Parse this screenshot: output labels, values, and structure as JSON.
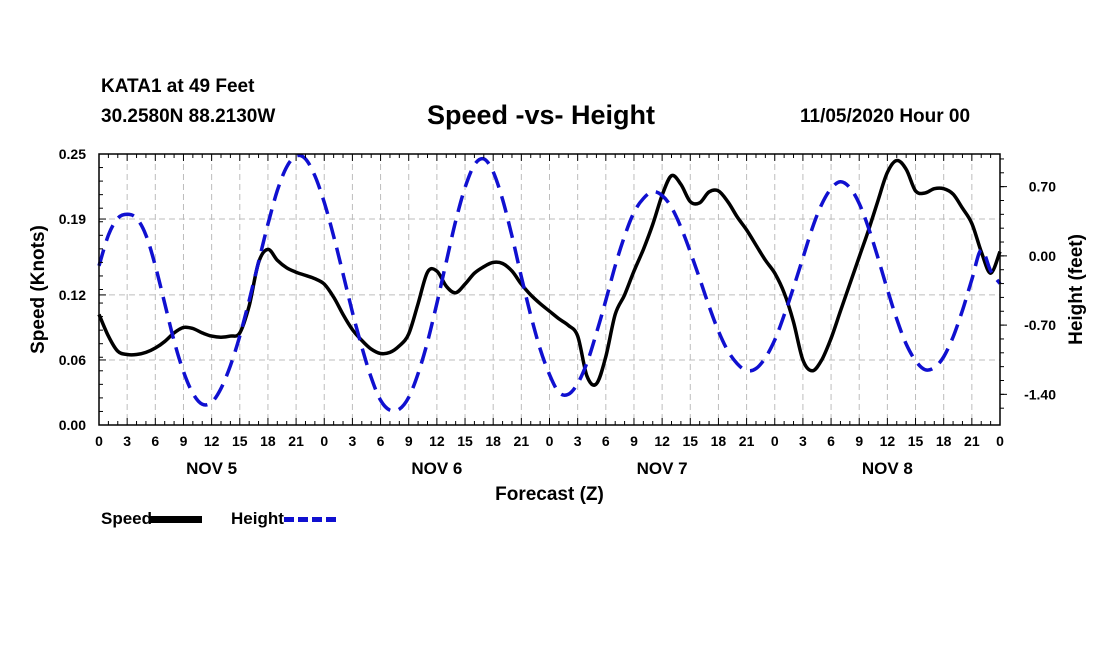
{
  "header": {
    "station": "KATA1 at 49 Feet",
    "coords": "30.2580N 88.2130W",
    "title": "Speed -vs- Height",
    "timestamp": "11/05/2020 Hour 00"
  },
  "legend": {
    "speed": "Speed",
    "height": "Height"
  },
  "colors": {
    "speed": "#000000",
    "height": "#1010d0",
    "grid": "#bdbdbd"
  },
  "chart_data": {
    "type": "line",
    "title": "Speed -vs- Height",
    "xlabel": "Forecast (Z)",
    "ylabel": "Speed (Knots)",
    "y2label": "Height (feet)",
    "xlim": [
      0,
      96
    ],
    "ylim": [
      0,
      0.25
    ],
    "y2lim": [
      -1.71,
      1.03
    ],
    "x_ticks": [
      "0",
      "3",
      "6",
      "9",
      "12",
      "15",
      "18",
      "21",
      "0",
      "3",
      "6",
      "9",
      "12",
      "15",
      "18",
      "21",
      "0",
      "3",
      "6",
      "9",
      "12",
      "15",
      "18",
      "21",
      "0",
      "3",
      "6",
      "9",
      "12",
      "15",
      "18",
      "21",
      "0"
    ],
    "y_ticks": [
      0.0,
      0.06,
      0.12,
      0.19,
      0.25
    ],
    "y_tick_labels": [
      "0.00",
      "0.06",
      "0.12",
      "0.19",
      "0.25"
    ],
    "y2_ticks": [
      -1.4,
      -0.7,
      0.0,
      0.7
    ],
    "y2_tick_labels": [
      "-1.40",
      "-0.70",
      "0.00",
      "0.70"
    ],
    "day_labels": [
      {
        "label": "NOV 5",
        "at": 12
      },
      {
        "label": "NOV 6",
        "at": 36
      },
      {
        "label": "NOV 7",
        "at": 60
      },
      {
        "label": "NOV 8",
        "at": 84
      }
    ],
    "grid": true,
    "series": [
      {
        "name": "Speed",
        "axis": "left",
        "style": "solid",
        "x": [
          0,
          1,
          2,
          3,
          4,
          5,
          6,
          7,
          8,
          9,
          10,
          11,
          12,
          13,
          14,
          15,
          16,
          17,
          18,
          19,
          20,
          21,
          22,
          23,
          24,
          25,
          26,
          27,
          28,
          29,
          30,
          31,
          32,
          33,
          34,
          35,
          36,
          37,
          38,
          39,
          40,
          41,
          42,
          43,
          44,
          45,
          46,
          47,
          48,
          49,
          50,
          51,
          52,
          53,
          54,
          55,
          56,
          57,
          58,
          59,
          60,
          61,
          62,
          63,
          64,
          65,
          66,
          67,
          68,
          69,
          70,
          71,
          72,
          73,
          74,
          75,
          76,
          77,
          78,
          79,
          80,
          81,
          82,
          83,
          84,
          85,
          86,
          87,
          88,
          89,
          90,
          91,
          92,
          93,
          94,
          95,
          96
        ],
        "values": [
          0.102,
          0.082,
          0.068,
          0.065,
          0.065,
          0.067,
          0.071,
          0.077,
          0.085,
          0.09,
          0.089,
          0.085,
          0.082,
          0.081,
          0.082,
          0.085,
          0.11,
          0.15,
          0.162,
          0.152,
          0.145,
          0.141,
          0.138,
          0.135,
          0.13,
          0.118,
          0.102,
          0.088,
          0.078,
          0.07,
          0.066,
          0.067,
          0.073,
          0.084,
          0.112,
          0.141,
          0.142,
          0.128,
          0.122,
          0.13,
          0.14,
          0.146,
          0.15,
          0.149,
          0.142,
          0.13,
          0.12,
          0.112,
          0.105,
          0.098,
          0.092,
          0.082,
          0.045,
          0.038,
          0.063,
          0.102,
          0.12,
          0.142,
          0.162,
          0.185,
          0.212,
          0.23,
          0.222,
          0.206,
          0.205,
          0.215,
          0.216,
          0.206,
          0.192,
          0.18,
          0.166,
          0.152,
          0.14,
          0.122,
          0.095,
          0.06,
          0.05,
          0.06,
          0.08,
          0.105,
          0.13,
          0.155,
          0.18,
          0.207,
          0.233,
          0.244,
          0.236,
          0.216,
          0.214,
          0.218,
          0.218,
          0.213,
          0.2,
          0.186,
          0.16,
          0.14,
          0.16
        ]
      },
      {
        "name": "Height",
        "axis": "right",
        "style": "dashed",
        "x": [
          0,
          1,
          2,
          3,
          4,
          5,
          6,
          7,
          8,
          9,
          10,
          11,
          12,
          13,
          14,
          15,
          16,
          17,
          18,
          19,
          20,
          21,
          22,
          23,
          24,
          25,
          26,
          27,
          28,
          29,
          30,
          31,
          32,
          33,
          34,
          35,
          36,
          37,
          38,
          39,
          40,
          41,
          42,
          43,
          44,
          45,
          46,
          47,
          48,
          49,
          50,
          51,
          52,
          53,
          54,
          55,
          56,
          57,
          58,
          59,
          60,
          61,
          62,
          63,
          64,
          65,
          66,
          67,
          68,
          69,
          70,
          71,
          72,
          73,
          74,
          75,
          76,
          77,
          78,
          79,
          80,
          81,
          82,
          83,
          84,
          85,
          86,
          87,
          88,
          89,
          90,
          91,
          92,
          93,
          94,
          95,
          96
        ],
        "values": [
          -0.1,
          0.21,
          0.38,
          0.42,
          0.38,
          0.21,
          -0.1,
          -0.48,
          -0.86,
          -1.17,
          -1.39,
          -1.5,
          -1.48,
          -1.34,
          -1.11,
          -0.81,
          -0.45,
          -0.06,
          0.32,
          0.66,
          0.9,
          1.01,
          0.98,
          0.81,
          0.54,
          0.2,
          -0.18,
          -0.57,
          -0.92,
          -1.23,
          -1.46,
          -1.56,
          -1.55,
          -1.43,
          -1.19,
          -0.87,
          -0.48,
          -0.06,
          0.35,
          0.69,
          0.92,
          0.98,
          0.85,
          0.57,
          0.2,
          -0.21,
          -0.6,
          -0.94,
          -1.2,
          -1.38,
          -1.4,
          -1.29,
          -1.08,
          -0.78,
          -0.45,
          -0.1,
          0.2,
          0.44,
          0.58,
          0.65,
          0.61,
          0.49,
          0.29,
          0.04,
          -0.23,
          -0.51,
          -0.76,
          -0.96,
          -1.09,
          -1.16,
          -1.14,
          -1.03,
          -0.85,
          -0.6,
          -0.32,
          -0.02,
          0.28,
          0.52,
          0.68,
          0.75,
          0.69,
          0.53,
          0.28,
          -0.02,
          -0.34,
          -0.64,
          -0.89,
          -1.06,
          -1.15,
          -1.13,
          -1.02,
          -0.82,
          -0.55,
          -0.24,
          0.06,
          -0.15,
          -0.28
        ]
      }
    ]
  }
}
